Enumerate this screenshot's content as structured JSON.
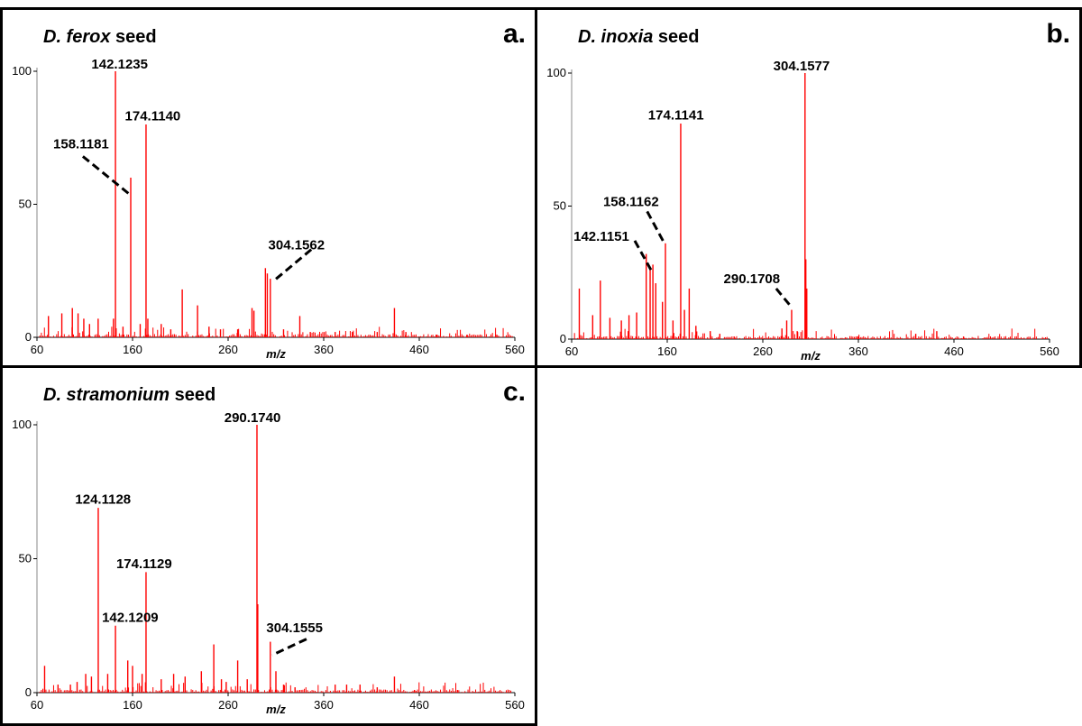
{
  "chart_data": [
    {
      "id": "a",
      "type": "bar",
      "title_species": "D. ferox",
      "title_rest": " seed",
      "panel_label": "a.",
      "xlabel": "m/z",
      "xlim": [
        60,
        560
      ],
      "ylim": [
        0,
        100
      ],
      "xticks": [
        60,
        160,
        260,
        360,
        460,
        560
      ],
      "yticks": [
        0,
        50,
        100
      ],
      "color": "#ff0000",
      "peaks": [
        {
          "mz": 142.1235,
          "intensity": 100
        },
        {
          "mz": 174.114,
          "intensity": 80
        },
        {
          "mz": 158.1181,
          "intensity": 60
        },
        {
          "mz": 304.1562,
          "intensity": 22
        },
        {
          "mz": 299,
          "intensity": 26
        },
        {
          "mz": 301,
          "intensity": 24
        },
        {
          "mz": 212,
          "intensity": 18
        },
        {
          "mz": 228,
          "intensity": 12
        },
        {
          "mz": 285,
          "intensity": 11
        },
        {
          "mz": 287,
          "intensity": 10
        },
        {
          "mz": 434,
          "intensity": 11
        },
        {
          "mz": 97,
          "intensity": 11
        },
        {
          "mz": 103,
          "intensity": 9
        },
        {
          "mz": 109,
          "intensity": 7
        },
        {
          "mz": 124,
          "intensity": 7
        },
        {
          "mz": 140,
          "intensity": 7
        },
        {
          "mz": 176,
          "intensity": 7
        },
        {
          "mz": 190,
          "intensity": 5
        },
        {
          "mz": 240,
          "intensity": 4
        },
        {
          "mz": 270,
          "intensity": 3
        },
        {
          "mz": 335,
          "intensity": 8
        },
        {
          "mz": 86,
          "intensity": 9
        },
        {
          "mz": 72,
          "intensity": 8
        },
        {
          "mz": 115,
          "intensity": 5
        },
        {
          "mz": 150,
          "intensity": 4
        },
        {
          "mz": 168,
          "intensity": 5
        },
        {
          "mz": 200,
          "intensity": 3
        },
        {
          "mz": 252,
          "intensity": 3
        },
        {
          "mz": 318,
          "intensity": 3
        },
        {
          "mz": 346,
          "intensity": 2
        },
        {
          "mz": 372,
          "intensity": 2
        },
        {
          "mz": 390,
          "intensity": 2
        },
        {
          "mz": 416,
          "intensity": 2
        },
        {
          "mz": 446,
          "intensity": 2
        },
        {
          "mz": 478,
          "intensity": 1
        },
        {
          "mz": 510,
          "intensity": 1
        },
        {
          "mz": 540,
          "intensity": 1
        }
      ],
      "annotations": [
        {
          "text": "142.1235",
          "mz": 142.1235,
          "y": 100,
          "label_mz": 117,
          "label_y": 101
        },
        {
          "text": "174.1140",
          "mz": 174.114,
          "y": 80,
          "label_mz": 152,
          "label_y": 81.5
        },
        {
          "text": "158.1181",
          "mz": 158.1181,
          "y": 60,
          "label_mz": 77,
          "label_y": 71,
          "leader": [
            108,
            68,
            156,
            54
          ]
        },
        {
          "text": "304.1562",
          "mz": 304.1562,
          "y": 22,
          "label_mz": 302,
          "label_y": 33,
          "leader": [
            347,
            33,
            307,
            21
          ]
        }
      ]
    },
    {
      "id": "b",
      "type": "bar",
      "title_species": "D. inoxia",
      "title_rest": " seed",
      "panel_label": "b.",
      "xlabel": "m/z",
      "xlim": [
        60,
        560
      ],
      "ylim": [
        0,
        100
      ],
      "xticks": [
        60,
        160,
        260,
        360,
        460,
        560
      ],
      "yticks": [
        0,
        50,
        100
      ],
      "color": "#ff0000",
      "peaks": [
        {
          "mz": 304.1577,
          "intensity": 100
        },
        {
          "mz": 174.1141,
          "intensity": 81
        },
        {
          "mz": 158.1162,
          "intensity": 36
        },
        {
          "mz": 142.1151,
          "intensity": 26
        },
        {
          "mz": 290.1708,
          "intensity": 11
        },
        {
          "mz": 305,
          "intensity": 30
        },
        {
          "mz": 306,
          "intensity": 19
        },
        {
          "mz": 138,
          "intensity": 32
        },
        {
          "mz": 145,
          "intensity": 28
        },
        {
          "mz": 148,
          "intensity": 21
        },
        {
          "mz": 183,
          "intensity": 19
        },
        {
          "mz": 90,
          "intensity": 22
        },
        {
          "mz": 68,
          "intensity": 19
        },
        {
          "mz": 82,
          "intensity": 9
        },
        {
          "mz": 100,
          "intensity": 8
        },
        {
          "mz": 112,
          "intensity": 7
        },
        {
          "mz": 120,
          "intensity": 9
        },
        {
          "mz": 128,
          "intensity": 10
        },
        {
          "mz": 155,
          "intensity": 14
        },
        {
          "mz": 166,
          "intensity": 7
        },
        {
          "mz": 178,
          "intensity": 11
        },
        {
          "mz": 190,
          "intensity": 5
        },
        {
          "mz": 205,
          "intensity": 3
        },
        {
          "mz": 215,
          "intensity": 2
        },
        {
          "mz": 230,
          "intensity": 1
        },
        {
          "mz": 280,
          "intensity": 4
        },
        {
          "mz": 285,
          "intensity": 7
        },
        {
          "mz": 296,
          "intensity": 3
        },
        {
          "mz": 360,
          "intensity": 1
        },
        {
          "mz": 420,
          "intensity": 2
        },
        {
          "mz": 442,
          "intensity": 3
        },
        {
          "mz": 470,
          "intensity": 1
        }
      ],
      "annotations": [
        {
          "text": "304.1577",
          "mz": 304.1577,
          "y": 100,
          "label_mz": 271,
          "label_y": 101
        },
        {
          "text": "174.1141",
          "mz": 174.1141,
          "y": 81,
          "label_mz": 140,
          "label_y": 82.5
        },
        {
          "text": "158.1162",
          "mz": 158.1162,
          "y": 36,
          "label_mz": 93,
          "label_y": 50,
          "leader": [
            139,
            48,
            157,
            36
          ]
        },
        {
          "text": "142.1151",
          "mz": 142.1151,
          "y": 26,
          "label_mz": 62,
          "label_y": 37,
          "leader": [
            126,
            37,
            143,
            26
          ]
        },
        {
          "text": "290.1708",
          "mz": 290.1708,
          "y": 11,
          "label_mz": 219,
          "label_y": 21,
          "leader": [
            274,
            19,
            290,
            12
          ]
        }
      ]
    },
    {
      "id": "c",
      "type": "bar",
      "title_species": "D. stramonium",
      "title_rest": " seed",
      "panel_label": "c.",
      "xlabel": "m/z",
      "xlim": [
        60,
        560
      ],
      "ylim": [
        0,
        100
      ],
      "xticks": [
        60,
        160,
        260,
        360,
        460,
        560
      ],
      "yticks": [
        0,
        50,
        100
      ],
      "color": "#ff0000",
      "peaks": [
        {
          "mz": 290.174,
          "intensity": 100
        },
        {
          "mz": 124.1128,
          "intensity": 69
        },
        {
          "mz": 174.1129,
          "intensity": 45
        },
        {
          "mz": 142.1209,
          "intensity": 25
        },
        {
          "mz": 304.1555,
          "intensity": 19
        },
        {
          "mz": 291,
          "intensity": 33
        },
        {
          "mz": 245,
          "intensity": 18
        },
        {
          "mz": 270,
          "intensity": 12
        },
        {
          "mz": 68,
          "intensity": 10
        },
        {
          "mz": 111,
          "intensity": 7
        },
        {
          "mz": 117,
          "intensity": 6
        },
        {
          "mz": 134,
          "intensity": 7
        },
        {
          "mz": 155,
          "intensity": 12
        },
        {
          "mz": 160,
          "intensity": 10
        },
        {
          "mz": 170,
          "intensity": 7
        },
        {
          "mz": 190,
          "intensity": 5
        },
        {
          "mz": 203,
          "intensity": 7
        },
        {
          "mz": 215,
          "intensity": 6
        },
        {
          "mz": 232,
          "intensity": 8
        },
        {
          "mz": 253,
          "intensity": 5
        },
        {
          "mz": 258,
          "intensity": 4
        },
        {
          "mz": 280,
          "intensity": 5
        },
        {
          "mz": 318,
          "intensity": 3
        },
        {
          "mz": 310,
          "intensity": 8
        },
        {
          "mz": 82,
          "intensity": 3
        },
        {
          "mz": 95,
          "intensity": 3
        },
        {
          "mz": 102,
          "intensity": 4
        },
        {
          "mz": 330,
          "intensity": 2
        },
        {
          "mz": 372,
          "intensity": 3
        },
        {
          "mz": 384,
          "intensity": 3
        },
        {
          "mz": 398,
          "intensity": 3
        },
        {
          "mz": 416,
          "intensity": 2
        },
        {
          "mz": 434,
          "intensity": 6
        },
        {
          "mz": 455,
          "intensity": 1
        },
        {
          "mz": 500,
          "intensity": 1
        }
      ],
      "annotations": [
        {
          "text": "290.1740",
          "mz": 290.174,
          "y": 100,
          "label_mz": 256,
          "label_y": 101
        },
        {
          "text": "124.1128",
          "mz": 124.1128,
          "y": 69,
          "label_mz": 100,
          "label_y": 70.5
        },
        {
          "text": "174.1129",
          "mz": 174.1129,
          "y": 45,
          "label_mz": 143,
          "label_y": 46.5
        },
        {
          "text": "142.1209",
          "mz": 142.1209,
          "y": 25,
          "label_mz": 128,
          "label_y": 26.5
        },
        {
          "text": "304.1555",
          "mz": 304.1555,
          "y": 19,
          "label_mz": 300,
          "label_y": 22.5,
          "leader": [
            342,
            20,
            306,
            14
          ]
        }
      ]
    }
  ]
}
